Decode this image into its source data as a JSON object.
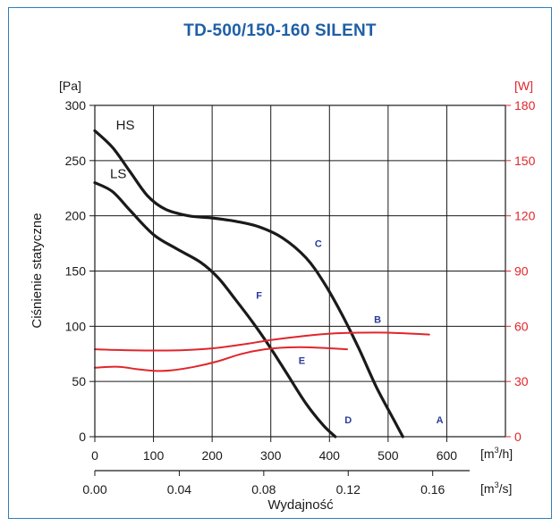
{
  "chart_data": {
    "type": "line",
    "title": "TD-500/150-160 SILENT",
    "ylabel": "Ciśnienie statyczne",
    "xlabel": "Wydajność",
    "y_unit": "[Pa]",
    "y2_unit": "[W]",
    "x_unit": "[m³/h]",
    "x2_unit": "[m³/s]",
    "xlim": [
      0,
      700
    ],
    "ylim": [
      0,
      300
    ],
    "y2lim": [
      0,
      180
    ],
    "x_ticks": [
      "0",
      "100",
      "200",
      "300",
      "400",
      "500",
      "600"
    ],
    "x2_ticks": [
      "0.00",
      "0.04",
      "0.08",
      "0.12",
      "0.16"
    ],
    "x2_tick_values": [
      0,
      144,
      288,
      432,
      576
    ],
    "y_ticks": [
      "0",
      "50",
      "100",
      "150",
      "200",
      "250",
      "300"
    ],
    "y2_ticks": [
      "0",
      "30",
      "60",
      "90",
      "120",
      "150",
      "180"
    ],
    "grid": true,
    "colors": {
      "pressure": "#1a1a1a",
      "power": "#e0262b",
      "title": "#1e5fa6",
      "markers": "#2a3d9a",
      "frame": "#2b7fc0"
    },
    "series": [
      {
        "name": "HS",
        "axis": "pressure",
        "points": [
          [
            0,
            277
          ],
          [
            30,
            262
          ],
          [
            60,
            240
          ],
          [
            90,
            218
          ],
          [
            120,
            206
          ],
          [
            160,
            200
          ],
          [
            200,
            198
          ],
          [
            240,
            195
          ],
          [
            280,
            190
          ],
          [
            320,
            180
          ],
          [
            360,
            162
          ],
          [
            390,
            140
          ],
          [
            420,
            112
          ],
          [
            450,
            80
          ],
          [
            480,
            45
          ],
          [
            510,
            15
          ],
          [
            525,
            0
          ]
        ]
      },
      {
        "name": "LS",
        "axis": "pressure",
        "points": [
          [
            0,
            230
          ],
          [
            30,
            222
          ],
          [
            60,
            205
          ],
          [
            100,
            183
          ],
          [
            140,
            170
          ],
          [
            180,
            158
          ],
          [
            210,
            144
          ],
          [
            240,
            124
          ],
          [
            270,
            103
          ],
          [
            300,
            80
          ],
          [
            330,
            55
          ],
          [
            360,
            30
          ],
          [
            390,
            10
          ],
          [
            410,
            0
          ]
        ]
      },
      {
        "name": "",
        "axis": "power",
        "points": [
          [
            0,
            47.5
          ],
          [
            50,
            47.0
          ],
          [
            100,
            46.8
          ],
          [
            150,
            47.0
          ],
          [
            200,
            48.0
          ],
          [
            250,
            50.0
          ],
          [
            300,
            52.5
          ],
          [
            350,
            54.5
          ],
          [
            400,
            56.0
          ],
          [
            450,
            56.5
          ],
          [
            500,
            56.5
          ],
          [
            570,
            55.5
          ]
        ]
      },
      {
        "name": "",
        "axis": "power",
        "points": [
          [
            0,
            37.5
          ],
          [
            40,
            38.0
          ],
          [
            70,
            36.8
          ],
          [
            100,
            35.8
          ],
          [
            130,
            36.0
          ],
          [
            170,
            38.0
          ],
          [
            210,
            41.0
          ],
          [
            250,
            45.0
          ],
          [
            290,
            47.5
          ],
          [
            330,
            48.5
          ],
          [
            370,
            48.5
          ],
          [
            430,
            47.5
          ]
        ]
      }
    ],
    "annotations": [
      {
        "text": "A",
        "x": 588,
        "y": 12
      },
      {
        "text": "B",
        "x": 482,
        "y": 103
      },
      {
        "text": "C",
        "x": 381,
        "y": 172
      },
      {
        "text": "D",
        "x": 432,
        "y": 12
      },
      {
        "text": "E",
        "x": 353,
        "y": 66
      },
      {
        "text": "F",
        "x": 280,
        "y": 125
      },
      {
        "text": "HS",
        "x": 52,
        "y": 278
      },
      {
        "text": "LS",
        "x": 40,
        "y": 234
      }
    ]
  }
}
